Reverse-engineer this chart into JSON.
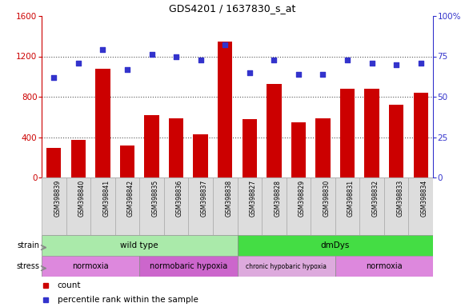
{
  "title": "GDS4201 / 1637830_s_at",
  "samples": [
    "GSM398839",
    "GSM398840",
    "GSM398841",
    "GSM398842",
    "GSM398835",
    "GSM398836",
    "GSM398837",
    "GSM398838",
    "GSM398827",
    "GSM398828",
    "GSM398829",
    "GSM398830",
    "GSM398831",
    "GSM398832",
    "GSM398833",
    "GSM398834"
  ],
  "counts": [
    290,
    370,
    1080,
    315,
    620,
    590,
    430,
    1350,
    580,
    930,
    550,
    590,
    880,
    880,
    720,
    840
  ],
  "percentile": [
    62,
    71,
    79,
    67,
    76,
    75,
    73,
    82,
    65,
    73,
    64,
    64,
    73,
    71,
    70,
    71
  ],
  "bar_color": "#cc0000",
  "dot_color": "#3333cc",
  "left_yaxis_color": "#cc0000",
  "right_yaxis_color": "#3333cc",
  "left_ylim": [
    0,
    1600
  ],
  "left_yticks": [
    0,
    400,
    800,
    1200,
    1600
  ],
  "right_ylim": [
    0,
    100
  ],
  "right_yticks": [
    0,
    25,
    50,
    75,
    100
  ],
  "right_yticklabels": [
    "0",
    "25",
    "50",
    "75",
    "100%"
  ],
  "strain_groups": [
    {
      "label": "wild type",
      "start": 0,
      "end": 8,
      "color": "#aaeaaa"
    },
    {
      "label": "dmDys",
      "start": 8,
      "end": 16,
      "color": "#44dd44"
    }
  ],
  "stress_colors": [
    "#dd88dd",
    "#cc66cc",
    "#ddaadd",
    "#dd88dd"
  ],
  "stress_groups": [
    {
      "label": "normoxia",
      "start": 0,
      "end": 4
    },
    {
      "label": "normobaric hypoxia",
      "start": 4,
      "end": 8
    },
    {
      "label": "chronic hypobaric hypoxia",
      "start": 8,
      "end": 12
    },
    {
      "label": "normoxia",
      "start": 12,
      "end": 16
    }
  ],
  "grid_color": "#555555",
  "xtick_bg": "#dddddd",
  "legend_count_color": "#cc0000",
  "legend_dot_color": "#3333cc"
}
